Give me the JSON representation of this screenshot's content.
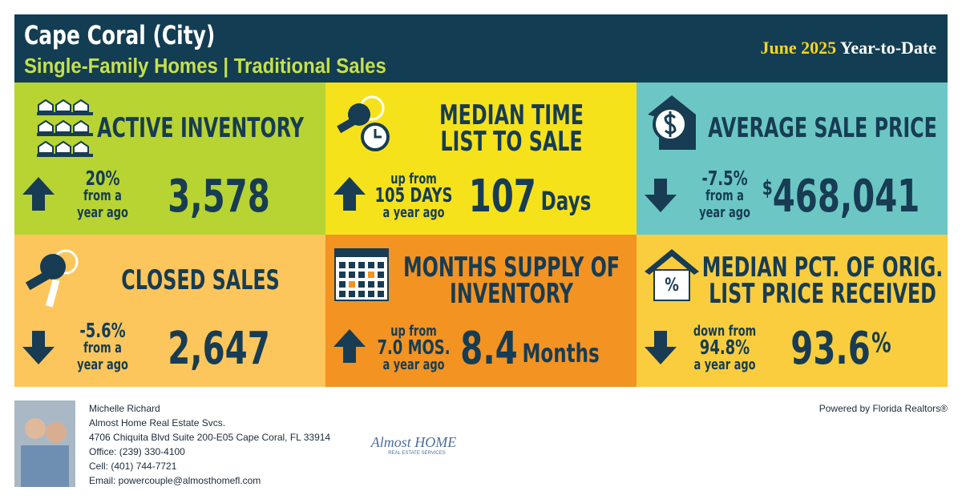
{
  "header": {
    "title": "Cape Coral (City)",
    "subtitle": "Single-Family Homes | Traditional Sales",
    "period": "June 2025",
    "period_suffix": "Year-to-Date"
  },
  "tiles": [
    {
      "color": "#b7d433",
      "label_lines": [
        "ACTIVE INVENTORY"
      ],
      "direction": "up",
      "change_lines": [
        "20%",
        "from a",
        "year ago"
      ],
      "value": "3,578"
    },
    {
      "color": "#f6e21b",
      "label_lines": [
        "MEDIAN TIME",
        "LIST TO SALE"
      ],
      "direction": "up",
      "change_lines": [
        "up from",
        "105 DAYS",
        "a year ago"
      ],
      "value": "107",
      "unit": "Days"
    },
    {
      "color": "#6cc7c4",
      "label_lines": [
        "AVERAGE SALE PRICE"
      ],
      "direction": "down",
      "change_lines": [
        "-7.5%",
        "from a",
        "year ago"
      ],
      "value_prefix": "$",
      "value": "468,041"
    },
    {
      "color": "#fcc65c",
      "label_lines": [
        "CLOSED SALES"
      ],
      "direction": "down",
      "change_lines": [
        "-5.6%",
        "from a",
        "year ago"
      ],
      "value": "2,647"
    },
    {
      "color": "#f39322",
      "label_lines": [
        "MONTHS SUPPLY OF",
        "INVENTORY"
      ],
      "direction": "up",
      "change_lines": [
        "up from",
        "7.0 MOS.",
        "a year ago"
      ],
      "value": "8.4",
      "unit": "Months"
    },
    {
      "color": "#f9cd3d",
      "label_lines": [
        "MEDIAN PCT. OF ORIG.",
        "LIST PRICE RECEIVED"
      ],
      "direction": "down",
      "change_lines": [
        "down from",
        "94.8%",
        "a year ago"
      ],
      "value": "93.6",
      "unit": "%",
      "icon_label": "%"
    }
  ],
  "footer": {
    "contact_lines": [
      "Michelle Richard",
      "Almost Home Real Estate Svcs.",
      "4706 Chiquita Blvd Suite 200-E05 Cape Coral, FL 33914",
      "Office: (239) 330-4100",
      "Cell: (401) 744-7721",
      "Email: powercouple@almosthomefl.com"
    ],
    "logo": "Almost HOME",
    "logo_tagline": "REAL ESTATE SERVICES",
    "powered_by": "Powered by Florida Realtors®"
  }
}
